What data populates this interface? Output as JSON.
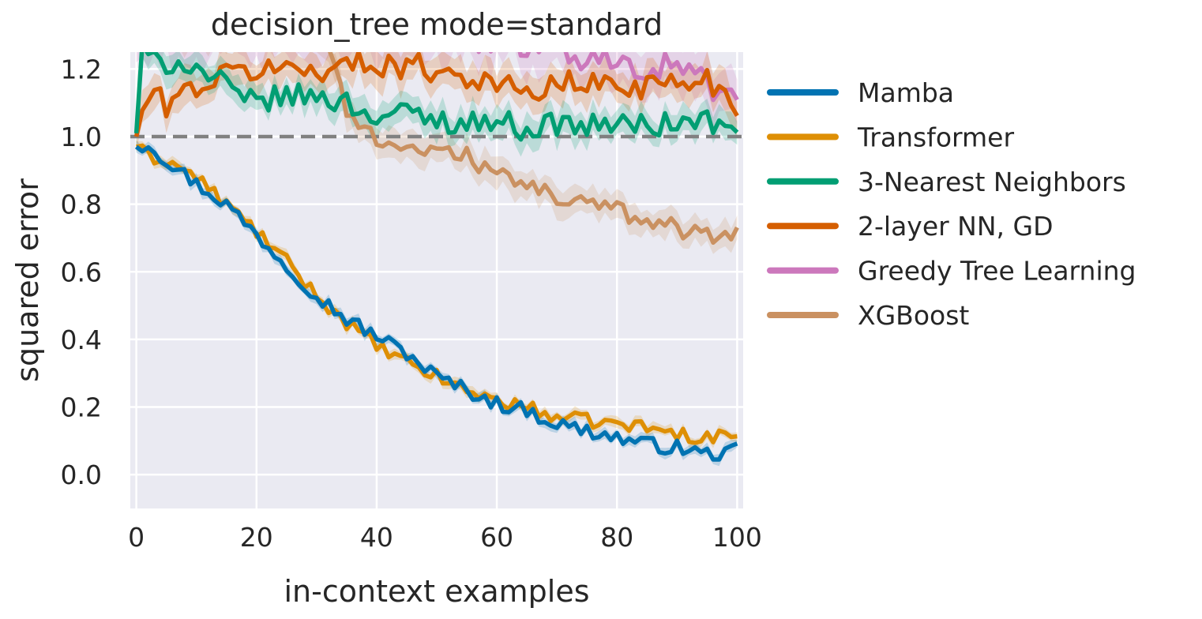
{
  "chart_data": {
    "type": "line",
    "title": "decision_tree mode=standard",
    "xlabel": "in-context examples",
    "ylabel": "squared error",
    "xlim": [
      -1,
      101
    ],
    "ylim": [
      -0.1,
      1.25
    ],
    "xticks": [
      0,
      20,
      40,
      60,
      80,
      100
    ],
    "yticks": [
      0.0,
      0.2,
      0.4,
      0.6,
      0.8,
      1.0,
      1.2
    ],
    "xtick_labels": [
      "0",
      "20",
      "40",
      "60",
      "80",
      "100"
    ],
    "ytick_labels": [
      "0.0",
      "0.2",
      "0.4",
      "0.6",
      "0.8",
      "1.0",
      "1.2"
    ],
    "grid": true,
    "legend_position": "outside-right",
    "reference_line": {
      "y": 1.0,
      "style": "dashed",
      "color": "#808080"
    },
    "series": [
      {
        "name": "Mamba",
        "color": "#0173b2",
        "anchors": [
          [
            0,
            0.97
          ],
          [
            2,
            0.98
          ],
          [
            5,
            0.93
          ],
          [
            10,
            0.86
          ],
          [
            15,
            0.8
          ],
          [
            20,
            0.71
          ],
          [
            25,
            0.62
          ],
          [
            30,
            0.53
          ],
          [
            35,
            0.46
          ],
          [
            40,
            0.41
          ],
          [
            45,
            0.36
          ],
          [
            50,
            0.29
          ],
          [
            55,
            0.25
          ],
          [
            60,
            0.21
          ],
          [
            65,
            0.19
          ],
          [
            70,
            0.15
          ],
          [
            75,
            0.13
          ],
          [
            80,
            0.11
          ],
          [
            85,
            0.09
          ],
          [
            90,
            0.08
          ],
          [
            95,
            0.06
          ],
          [
            100,
            0.07
          ]
        ],
        "noise": 0.022,
        "band": 0.015
      },
      {
        "name": "Transformer",
        "color": "#de8f05",
        "anchors": [
          [
            0,
            0.97
          ],
          [
            2,
            0.94
          ],
          [
            5,
            0.93
          ],
          [
            10,
            0.88
          ],
          [
            15,
            0.8
          ],
          [
            20,
            0.72
          ],
          [
            25,
            0.63
          ],
          [
            30,
            0.53
          ],
          [
            35,
            0.45
          ],
          [
            40,
            0.38
          ],
          [
            45,
            0.33
          ],
          [
            50,
            0.29
          ],
          [
            55,
            0.25
          ],
          [
            60,
            0.22
          ],
          [
            65,
            0.2
          ],
          [
            70,
            0.17
          ],
          [
            75,
            0.16
          ],
          [
            80,
            0.15
          ],
          [
            85,
            0.14
          ],
          [
            90,
            0.12
          ],
          [
            95,
            0.11
          ],
          [
            100,
            0.12
          ]
        ],
        "noise": 0.02,
        "band": 0.015
      },
      {
        "name": "3-Nearest Neighbors",
        "color": "#029e73",
        "anchors": [
          [
            0,
            1.01
          ],
          [
            1,
            1.25
          ],
          [
            3,
            1.22
          ],
          [
            8,
            1.22
          ],
          [
            12,
            1.18
          ],
          [
            15,
            1.15
          ],
          [
            18,
            1.1
          ],
          [
            25,
            1.12
          ],
          [
            30,
            1.12
          ],
          [
            35,
            1.1
          ],
          [
            40,
            1.06
          ],
          [
            45,
            1.07
          ],
          [
            50,
            1.05
          ],
          [
            55,
            1.04
          ],
          [
            60,
            1.05
          ],
          [
            65,
            1.02
          ],
          [
            70,
            1.04
          ],
          [
            75,
            1.03
          ],
          [
            80,
            1.04
          ],
          [
            85,
            1.03
          ],
          [
            90,
            1.04
          ],
          [
            95,
            1.05
          ],
          [
            100,
            1.0
          ]
        ],
        "noise": 0.035,
        "band": 0.04
      },
      {
        "name": "2-layer NN, GD",
        "color": "#d55e00",
        "anchors": [
          [
            0,
            1.0
          ],
          [
            2,
            1.12
          ],
          [
            5,
            1.1
          ],
          [
            10,
            1.15
          ],
          [
            15,
            1.18
          ],
          [
            20,
            1.2
          ],
          [
            30,
            1.2
          ],
          [
            40,
            1.22
          ],
          [
            50,
            1.2
          ],
          [
            55,
            1.18
          ],
          [
            60,
            1.16
          ],
          [
            65,
            1.12
          ],
          [
            70,
            1.16
          ],
          [
            75,
            1.15
          ],
          [
            80,
            1.16
          ],
          [
            85,
            1.15
          ],
          [
            90,
            1.16
          ],
          [
            95,
            1.17
          ],
          [
            100,
            1.1
          ]
        ],
        "noise": 0.04,
        "band": 0.05
      },
      {
        "name": "Greedy Tree Learning",
        "color": "#cc78bc",
        "anchors": [
          [
            0,
            1.3
          ],
          [
            50,
            1.3
          ],
          [
            60,
            1.28
          ],
          [
            70,
            1.27
          ],
          [
            75,
            1.22
          ],
          [
            80,
            1.24
          ],
          [
            85,
            1.2
          ],
          [
            90,
            1.22
          ],
          [
            95,
            1.15
          ],
          [
            100,
            1.12
          ]
        ],
        "noise": 0.04,
        "band": 0.07
      },
      {
        "name": "XGBoost",
        "color": "#ca9161",
        "anchors": [
          [
            0,
            1.3
          ],
          [
            30,
            1.3
          ],
          [
            33,
            1.22
          ],
          [
            35,
            1.06
          ],
          [
            40,
            1.0
          ],
          [
            45,
            0.97
          ],
          [
            50,
            0.95
          ],
          [
            55,
            0.95
          ],
          [
            60,
            0.88
          ],
          [
            65,
            0.86
          ],
          [
            70,
            0.82
          ],
          [
            75,
            0.8
          ],
          [
            80,
            0.78
          ],
          [
            85,
            0.76
          ],
          [
            90,
            0.73
          ],
          [
            95,
            0.71
          ],
          [
            100,
            0.72
          ]
        ],
        "noise": 0.028,
        "band": 0.04
      }
    ]
  }
}
